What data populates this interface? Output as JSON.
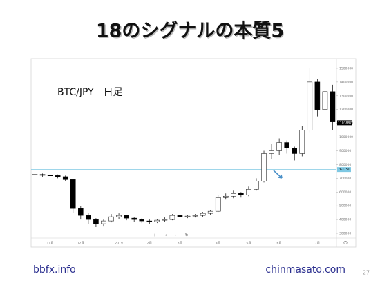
{
  "slide": {
    "title": "18のシグナルの本質5",
    "footer_left": "bbfx.info",
    "footer_right": "chinmasato.com",
    "page_number": "27"
  },
  "chart_data": {
    "type": "candlestick",
    "annotation": "BTC/JPY　日足",
    "categories": [
      null,
      null,
      "11月",
      null,
      null,
      null,
      "12月",
      null,
      null,
      null,
      null,
      "2019",
      null,
      null,
      null,
      "2月",
      null,
      null,
      null,
      "3月",
      null,
      null,
      null,
      null,
      "4月",
      null,
      null,
      null,
      "5月",
      null,
      null,
      null,
      "6月",
      null,
      null,
      null,
      null,
      "7月",
      null,
      null
    ],
    "open": [
      725000,
      728000,
      722000,
      720000,
      712000,
      690000,
      480000,
      430000,
      400000,
      370000,
      390000,
      420000,
      430000,
      410000,
      400000,
      390000,
      385000,
      395000,
      400000,
      430000,
      420000,
      425000,
      430000,
      445000,
      460000,
      560000,
      570000,
      590000,
      580000,
      620000,
      680000,
      880000,
      900000,
      960000,
      920000,
      880000,
      1050000,
      1400000,
      1200000,
      1330000
    ],
    "high": [
      740000,
      735000,
      730000,
      728000,
      720000,
      695000,
      500000,
      450000,
      410000,
      400000,
      440000,
      445000,
      435000,
      420000,
      410000,
      400000,
      405000,
      415000,
      440000,
      440000,
      435000,
      440000,
      455000,
      470000,
      580000,
      590000,
      610000,
      600000,
      640000,
      700000,
      900000,
      950000,
      990000,
      975000,
      930000,
      1080000,
      1500000,
      1420000,
      1400000,
      1380000
    ],
    "low": [
      715000,
      712000,
      708000,
      700000,
      680000,
      450000,
      400000,
      370000,
      345000,
      350000,
      380000,
      405000,
      395000,
      385000,
      375000,
      370000,
      375000,
      385000,
      395000,
      405000,
      410000,
      415000,
      420000,
      435000,
      455000,
      545000,
      555000,
      560000,
      570000,
      610000,
      670000,
      840000,
      870000,
      880000,
      830000,
      860000,
      1030000,
      1150000,
      1180000,
      1050000
    ],
    "close": [
      728000,
      722000,
      720000,
      712000,
      690000,
      480000,
      430000,
      400000,
      370000,
      390000,
      420000,
      430000,
      410000,
      400000,
      390000,
      385000,
      395000,
      400000,
      430000,
      420000,
      425000,
      430000,
      445000,
      460000,
      560000,
      570000,
      590000,
      580000,
      620000,
      680000,
      880000,
      900000,
      960000,
      920000,
      880000,
      1050000,
      1400000,
      1200000,
      1330000,
      1110000
    ],
    "up_color": "#ffffff",
    "down_color": "#000000",
    "ylim": [
      265000,
      1555000
    ],
    "yticks": [
      300000,
      400000,
      500000,
      600000,
      700000,
      800000,
      900000,
      1000000,
      1100000,
      1200000,
      1300000,
      1400000,
      1500000
    ],
    "hline": 763751,
    "hline_color": "#7ec8e3",
    "last_price": 1103887
  }
}
